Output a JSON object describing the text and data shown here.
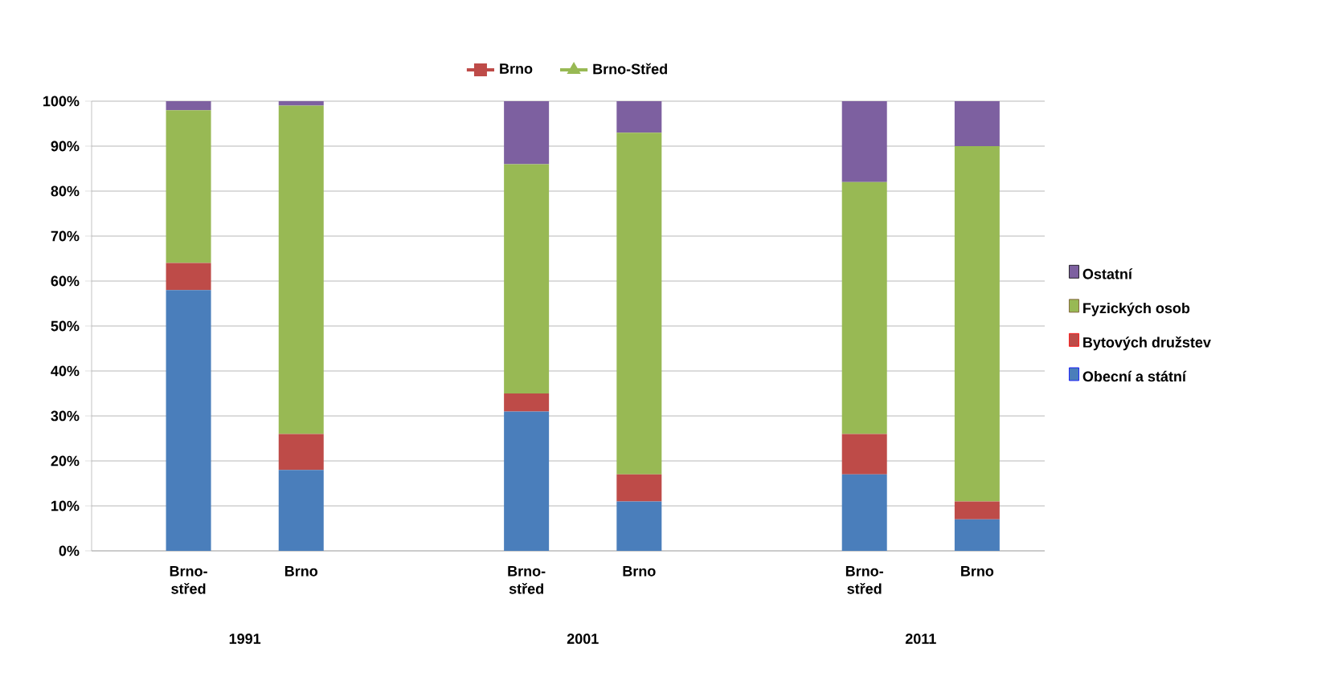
{
  "chart_data": {
    "type": "bar",
    "stacked": true,
    "categories": [
      "Brno-střed",
      "Brno",
      null,
      "Brno-střed",
      "Brno",
      null,
      "Brno-střed",
      "Brno"
    ],
    "series": [
      {
        "name": "Obecní a státní",
        "color": "#4a7ebb",
        "values": [
          58,
          18,
          null,
          31,
          11,
          null,
          17,
          7
        ]
      },
      {
        "name": "Bytových družstev",
        "color": "#be4b48",
        "values": [
          6,
          8,
          null,
          4,
          6,
          null,
          9,
          4
        ]
      },
      {
        "name": "Fyzických osob",
        "color": "#98b954",
        "values": [
          34,
          73,
          null,
          51,
          76,
          null,
          56,
          79
        ]
      },
      {
        "name": "Ostatní",
        "color": "#7d60a0",
        "values": [
          2,
          1,
          null,
          14,
          7,
          null,
          18,
          10
        ]
      },
      {
        "name": "Brno",
        "type": "line",
        "color": "#be4b48",
        "marker": "square",
        "values": [
          null,
          null,
          null,
          null,
          null,
          null,
          null,
          null
        ]
      },
      {
        "name": "Brno-Střed",
        "type": "line",
        "color": "#98b954",
        "marker": "triangle",
        "values": [
          null,
          null,
          null,
          null,
          null,
          null,
          null,
          null
        ]
      }
    ],
    "ylim": [
      0,
      100
    ],
    "yticks": [
      {
        "value": 0,
        "label": "0%"
      },
      {
        "value": 10,
        "label": "10%"
      },
      {
        "value": 20,
        "label": "20%"
      },
      {
        "value": 30,
        "label": "30%"
      },
      {
        "value": 40,
        "label": "40%"
      },
      {
        "value": 50,
        "label": "50%"
      },
      {
        "value": 60,
        "label": "60%"
      },
      {
        "value": 70,
        "label": "70%"
      },
      {
        "value": 80,
        "label": "80%"
      },
      {
        "value": 90,
        "label": "90%"
      },
      {
        "value": 100,
        "label": "100%"
      }
    ],
    "grid": "y",
    "legend": "right",
    "annotations": [
      "1991",
      "2001",
      "2011"
    ]
  }
}
